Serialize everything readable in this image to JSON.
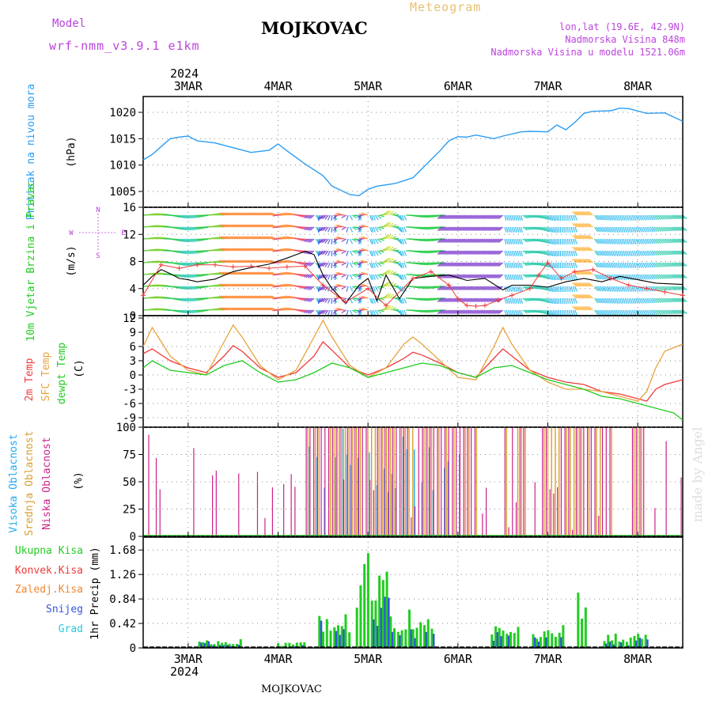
{
  "header": {
    "model_label": "Model",
    "model_name": "wrf-nmm_v3.9.1 e1km",
    "station": "MOJKOVAC",
    "product": "Meteogram",
    "lonlat": "lon,lat (19.6E, 42.9N)",
    "elevation": "Nadmorska Visina 848m",
    "model_elevation": "Nadmorska Visina u modelu 1521.06m"
  },
  "footer": {
    "station": "MOJKOVAC",
    "credit": "made by Angel"
  },
  "time_axis": {
    "year": "2024",
    "labels": [
      "3MAR",
      "4MAR",
      "5MAR",
      "6MAR",
      "7MAR",
      "8MAR"
    ],
    "start_day": 2.5,
    "end_day": 8.5
  },
  "colors": {
    "pressure": "#2a9df4",
    "temp2m": "#ee3b3b",
    "sfc_temp": "#e8a33d",
    "dewpoint": "#22cc22",
    "wind_speed": "#000000",
    "gust": "#ee3b3b",
    "model": "#bb44dd",
    "product": "#e8c070",
    "high_cloud": "#22aaee",
    "mid_cloud": "#d8a030",
    "low_cloud": "#cc2288",
    "total_precip": "#22cc22",
    "conv_precip": "#ee3b3b",
    "frozen_precip": "#ee8833",
    "snow": "#3355dd",
    "hail": "#22ccdd"
  },
  "chart_data": [
    {
      "type": "line",
      "id": "pressure",
      "ylabel": "Pritisak na nivou mora",
      "unit": "(hPa)",
      "ylim": [
        1002,
        1023
      ],
      "yticks": [
        "1005",
        "1010",
        "1015",
        "1020"
      ],
      "series": [
        {
          "x": [
            2.5,
            2.6,
            2.7,
            2.8,
            2.9,
            3.0,
            3.1,
            3.3,
            3.5,
            3.7,
            3.9,
            4.0,
            4.1,
            4.3,
            4.5,
            4.6,
            4.8,
            4.9,
            5.0,
            5.1,
            5.3,
            5.5,
            5.7,
            5.8,
            5.9,
            6.0,
            6.1,
            6.2,
            6.4,
            6.5,
            6.7,
            6.8,
            7.0,
            7.1,
            7.2,
            7.3,
            7.4,
            7.5,
            7.7,
            7.8,
            7.9,
            8.1,
            8.3,
            8.5
          ],
          "y": [
            1011,
            1012,
            1013.5,
            1015,
            1015.3,
            1015.5,
            1014.6,
            1014.2,
            1013.3,
            1012.4,
            1012.8,
            1014.0,
            1012.7,
            1010.2,
            1008.0,
            1006.0,
            1004.4,
            1004.2,
            1005.4,
            1006.0,
            1006.5,
            1007.6,
            1011.0,
            1012.7,
            1014.6,
            1015.4,
            1015.3,
            1015.7,
            1015.0,
            1015.5,
            1016.3,
            1016.4,
            1016.3,
            1017.6,
            1016.7,
            1018.1,
            1019.8,
            1020.2,
            1020.3,
            1020.8,
            1020.7,
            1019.8,
            1019.9,
            1018.3
          ]
        }
      ]
    },
    {
      "type": "line",
      "id": "wind",
      "ylabel": "10m Vjetar Brzina i Pravac",
      "unit": "(m/s)",
      "ylim": [
        0,
        16
      ],
      "yticks": [
        "0",
        "4",
        "8",
        "12",
        "16"
      ],
      "compass": [
        "N",
        "S",
        "W",
        "E"
      ],
      "series": [
        {
          "x": [
            2.5,
            2.6,
            2.7,
            2.8,
            2.9,
            3.0,
            3.1,
            3.3,
            3.5,
            3.7,
            3.9,
            4.1,
            4.3,
            4.4,
            4.5,
            4.6,
            4.75,
            4.9,
            5.0,
            5.1,
            5.2,
            5.35,
            5.5,
            5.7,
            5.9,
            6.1,
            6.3,
            6.5,
            6.6,
            6.8,
            7.0,
            7.2,
            7.4,
            7.6,
            7.8,
            8.0,
            8.2,
            8.5
          ],
          "y": [
            4.5,
            5.8,
            6.8,
            6.2,
            5.5,
            5.3,
            5.0,
            5.4,
            6.5,
            7.1,
            7.6,
            8.5,
            9.5,
            9.0,
            6.0,
            4.0,
            1.8,
            4.5,
            5.5,
            2.2,
            6.0,
            2.5,
            5.5,
            5.8,
            6.0,
            5.2,
            5.5,
            3.8,
            4.5,
            4.5,
            4.2,
            5.0,
            5.5,
            5.0,
            5.8,
            5.3,
            4.8,
            4.6
          ]
        },
        {
          "x": [
            2.5,
            2.7,
            2.9,
            3.1,
            3.3,
            3.5,
            3.7,
            3.9,
            4.1,
            4.3,
            4.5,
            4.75,
            5.0,
            5.2,
            5.5,
            5.7,
            5.9,
            6.0,
            6.1,
            6.2,
            6.3,
            6.45,
            6.6,
            6.8,
            6.9,
            7.0,
            7.15,
            7.3,
            7.5,
            7.7,
            7.9,
            8.1,
            8.3,
            8.5
          ],
          "y": [
            3.0,
            7.5,
            7.0,
            7.5,
            7.5,
            7.2,
            7.3,
            7.0,
            7.2,
            7.3,
            4.5,
            2.0,
            4.0,
            1.5,
            5.5,
            6.5,
            4.5,
            2.5,
            1.5,
            1.4,
            1.5,
            2.3,
            3.0,
            4.0,
            6.0,
            7.8,
            5.5,
            6.5,
            6.8,
            5.5,
            4.5,
            4.0,
            3.5,
            3.0
          ]
        }
      ]
    },
    {
      "type": "line",
      "id": "temperature",
      "labels": [
        "2m Temp",
        "SFC Temp",
        "dewpt Temp"
      ],
      "unit": "(C)",
      "ylim": [
        -11,
        12.5
      ],
      "yticks": [
        "-9",
        "-6",
        "-3",
        "0",
        "3",
        "6",
        "9",
        "12"
      ],
      "series": [
        {
          "name": "2m Temp",
          "x": [
            2.5,
            2.6,
            2.8,
            3.0,
            3.2,
            3.4,
            3.5,
            3.6,
            3.8,
            4.0,
            4.2,
            4.4,
            4.5,
            4.6,
            4.8,
            5.0,
            5.2,
            5.4,
            5.5,
            5.6,
            5.8,
            6.0,
            6.2,
            6.4,
            6.5,
            6.6,
            6.8,
            7.0,
            7.2,
            7.4,
            7.6,
            7.8,
            8.0,
            8.1,
            8.2,
            8.3,
            8.5
          ],
          "y": [
            4.5,
            5.5,
            3.0,
            1.5,
            0.5,
            4.0,
            6.2,
            5.0,
            1.5,
            -0.5,
            0.5,
            4.0,
            7.0,
            5.2,
            1.5,
            0.0,
            1.5,
            3.5,
            4.8,
            4.2,
            2.5,
            0.5,
            -0.5,
            3.5,
            5.5,
            4.0,
            1.0,
            -0.5,
            -1.5,
            -2.0,
            -3.5,
            -4.0,
            -5.0,
            -5.5,
            -3.0,
            -2.0,
            -1.0
          ]
        },
        {
          "name": "SFC Temp",
          "x": [
            2.5,
            2.6,
            2.8,
            3.0,
            3.2,
            3.4,
            3.5,
            3.6,
            3.8,
            4.0,
            4.2,
            4.4,
            4.5,
            4.6,
            4.8,
            5.0,
            5.2,
            5.4,
            5.5,
            5.6,
            5.8,
            6.0,
            6.2,
            6.4,
            6.5,
            6.6,
            6.8,
            7.0,
            7.2,
            7.4,
            7.6,
            7.8,
            8.0,
            8.1,
            8.2,
            8.3,
            8.5
          ],
          "y": [
            6.0,
            10.0,
            4.0,
            1.0,
            0.0,
            7.0,
            10.5,
            8.0,
            2.0,
            -1.0,
            1.0,
            8.0,
            11.5,
            8.0,
            2.0,
            -0.5,
            1.5,
            6.5,
            8.0,
            6.5,
            3.0,
            -0.5,
            -1.0,
            6.0,
            10.0,
            6.5,
            1.0,
            -1.5,
            -3.0,
            -3.0,
            -3.5,
            -4.5,
            -5.5,
            -3.5,
            1.5,
            5.0,
            6.5
          ]
        },
        {
          "name": "dewpt Temp",
          "x": [
            2.5,
            2.6,
            2.8,
            3.0,
            3.2,
            3.4,
            3.6,
            3.8,
            4.0,
            4.2,
            4.4,
            4.6,
            4.8,
            5.0,
            5.2,
            5.4,
            5.6,
            5.8,
            6.0,
            6.2,
            6.4,
            6.6,
            6.8,
            7.0,
            7.2,
            7.4,
            7.6,
            7.8,
            8.0,
            8.2,
            8.4,
            8.5
          ],
          "y": [
            1.5,
            3.0,
            1.0,
            0.5,
            0.0,
            2.0,
            3.0,
            0.5,
            -1.5,
            -1.0,
            0.5,
            2.5,
            1.5,
            -0.5,
            0.5,
            1.5,
            2.5,
            2.0,
            0.5,
            -0.5,
            1.5,
            2.0,
            0.5,
            -1.0,
            -2.0,
            -3.0,
            -4.5,
            -5.0,
            -6.0,
            -7.0,
            -8.0,
            -9.5
          ]
        }
      ]
    },
    {
      "type": "bar",
      "id": "cloud",
      "labels": [
        "Visoka Oblacnost",
        "Srednja Oblacnost",
        "Niska Oblacnost"
      ],
      "unit": "(%)",
      "ylim": [
        0,
        100
      ],
      "yticks": [
        "0",
        "25",
        "50",
        "75",
        "100"
      ]
    },
    {
      "type": "bar",
      "id": "precip",
      "ylabel": "1hr Precip (mm)",
      "legend": [
        "Ukupna Kisa",
        "Konvek.Kisa",
        "Zaledj.Kisa",
        "Snijeg",
        "Grad"
      ],
      "ylim": [
        0,
        1.9
      ],
      "yticks": [
        "0",
        "0.42",
        "0.84",
        "1.26",
        "1.68"
      ],
      "max_value": 1.9
    }
  ]
}
